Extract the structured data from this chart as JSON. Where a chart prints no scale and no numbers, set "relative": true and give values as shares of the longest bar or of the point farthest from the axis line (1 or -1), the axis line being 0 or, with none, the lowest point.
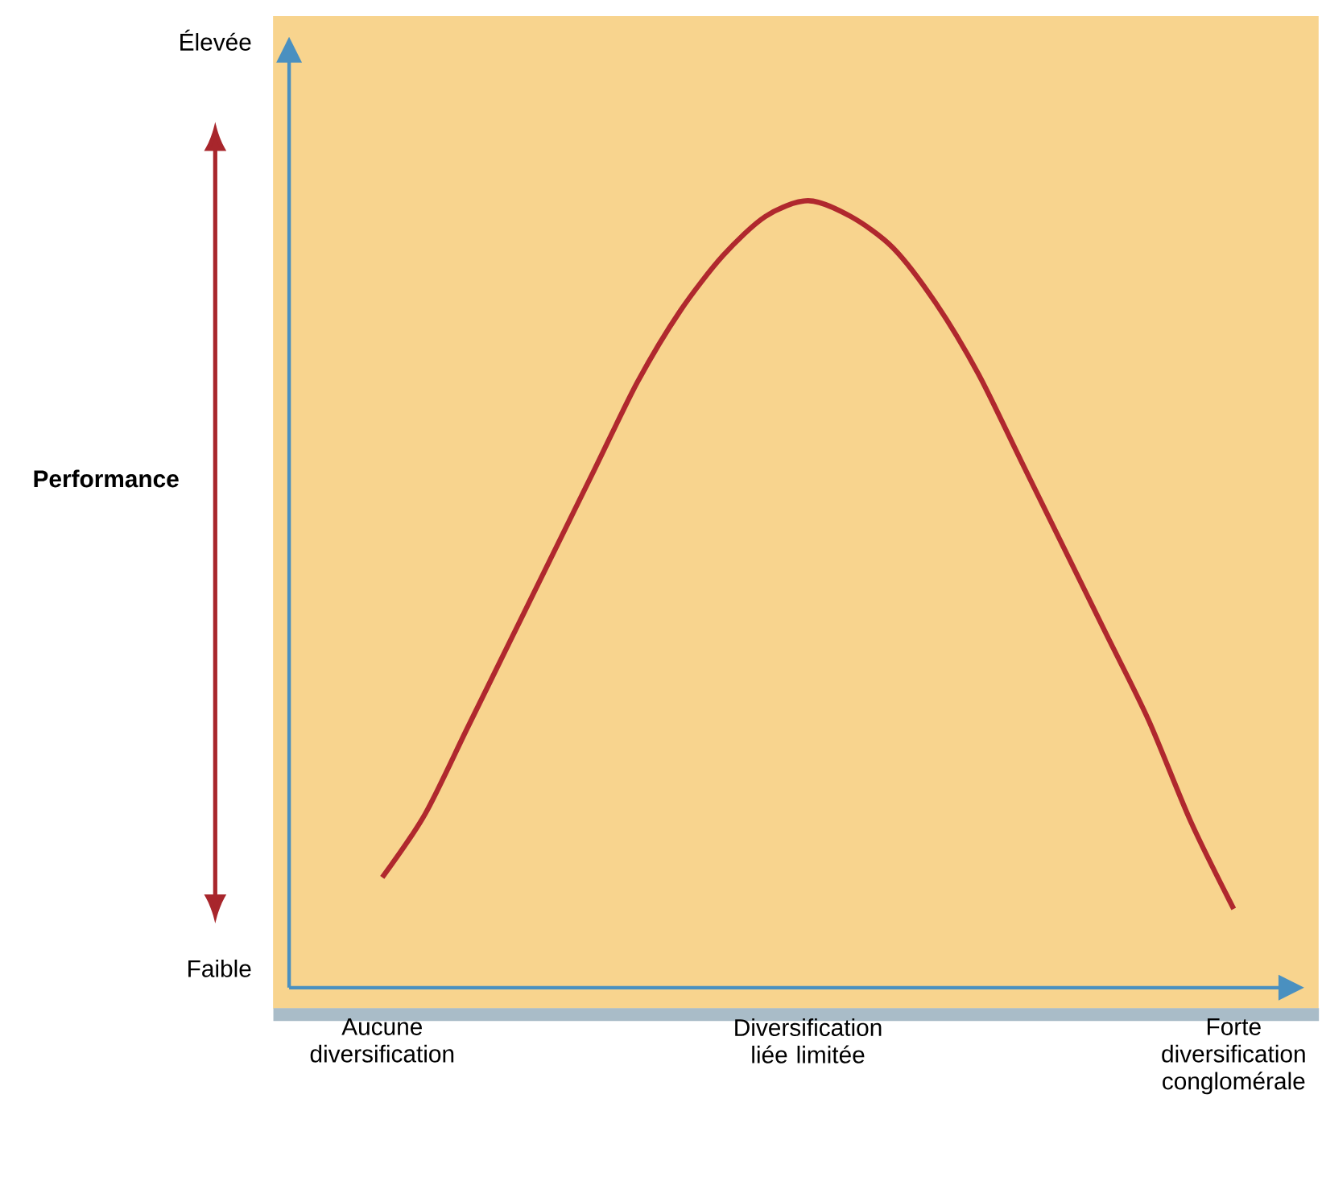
{
  "chart_data": {
    "type": "line",
    "relative": true,
    "categories": [
      "Aucune diversification",
      null,
      null,
      null,
      null,
      null,
      null,
      null,
      null,
      null,
      "Diversification liée limitée",
      null,
      null,
      null,
      null,
      null,
      null,
      null,
      null,
      null,
      "Forte diversification conglomérale"
    ],
    "series": [
      {
        "color": "#b0282e",
        "values": [
          0.14,
          0.22,
          0.33,
          0.44,
          0.55,
          0.66,
          0.77,
          0.86,
          0.93,
          0.98,
          1,
          0.98,
          0.94,
          0.87,
          0.78,
          0.67,
          0.56,
          0.45,
          0.34,
          0.21,
          0.1
        ]
      }
    ],
    "annotations": [
      "Élevée",
      "Faible",
      "Performance"
    ]
  }
}
